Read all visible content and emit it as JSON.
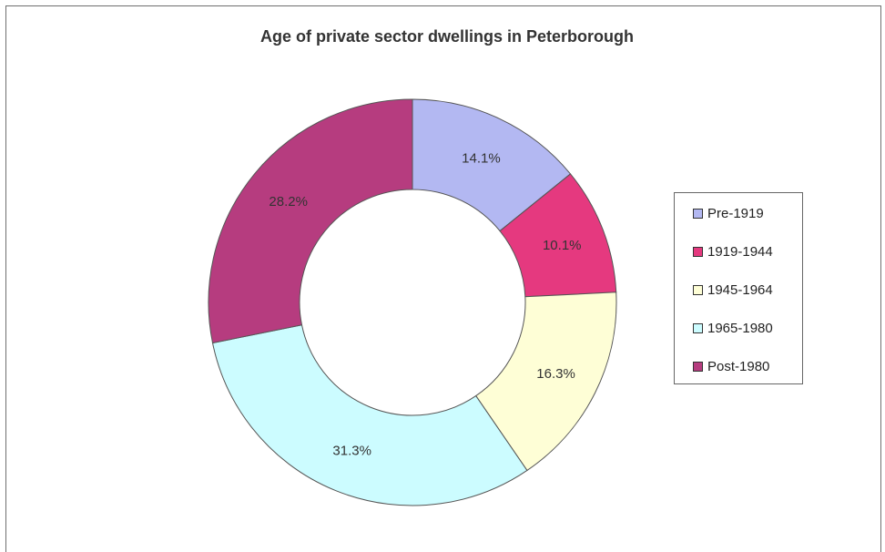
{
  "chart_data": {
    "type": "pie",
    "donut": true,
    "title": "Age of private sector dwellings in Peterborough",
    "categories": [
      "Pre-1919",
      "1919-1944",
      "1945-1964",
      "1965-1980",
      "Post-1980"
    ],
    "values": [
      14.1,
      10.1,
      16.3,
      31.3,
      28.2
    ],
    "labels": [
      "14.1%",
      "10.1%",
      "16.3%",
      "31.3%",
      "28.2%"
    ],
    "colors": [
      "#b3b8f2",
      "#e5397f",
      "#fefed6",
      "#ccfcff",
      "#b63c7f"
    ],
    "legend_position": "right",
    "start_angle": "12 o'clock",
    "direction": "clockwise"
  }
}
